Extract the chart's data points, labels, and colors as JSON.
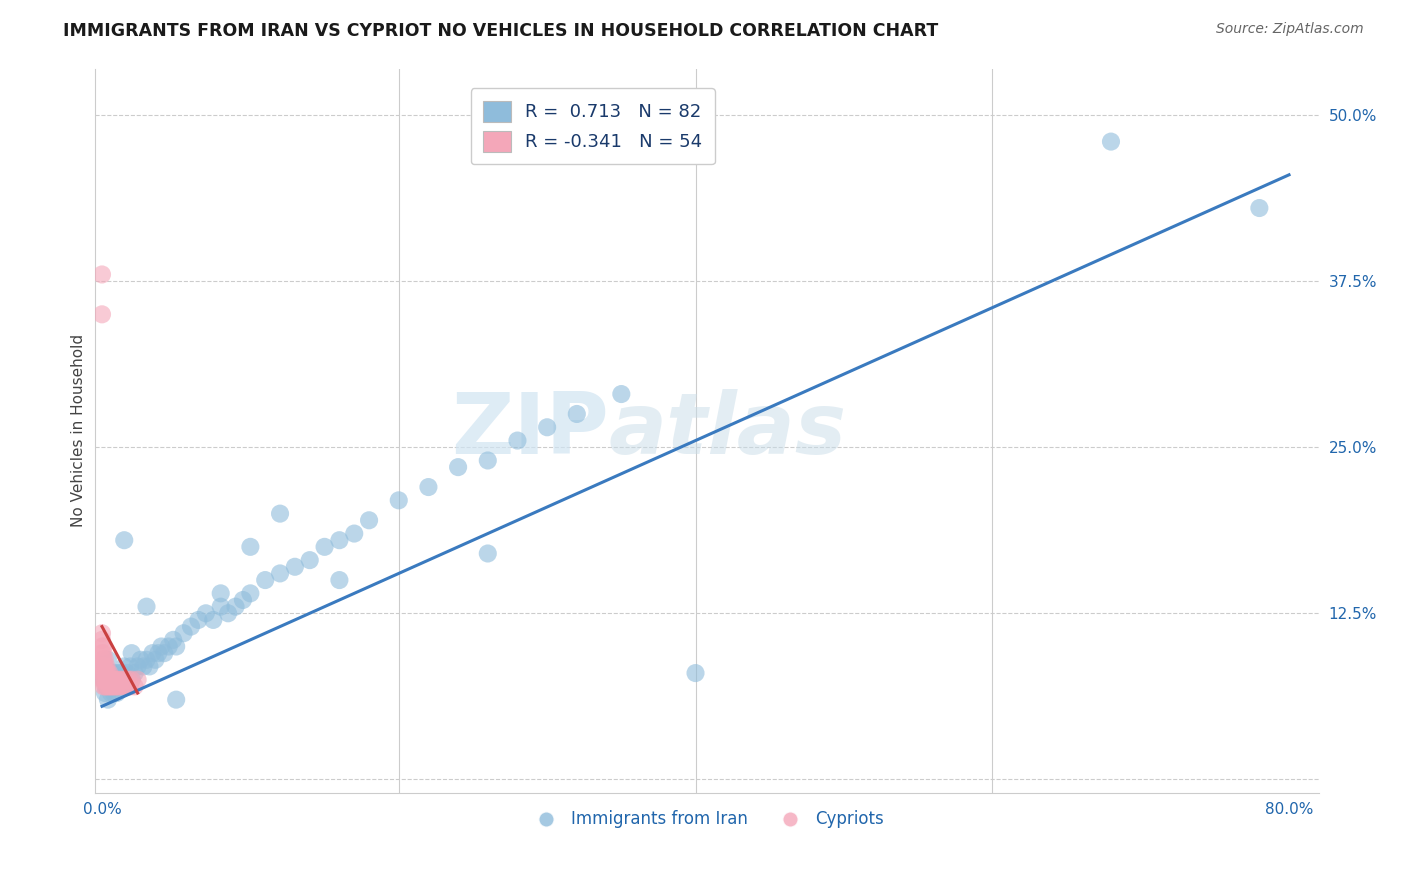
{
  "title": "IMMIGRANTS FROM IRAN VS CYPRIOT NO VEHICLES IN HOUSEHOLD CORRELATION CHART",
  "source": "Source: ZipAtlas.com",
  "ylabel": "No Vehicles in Household",
  "ytick_values": [
    0.0,
    0.125,
    0.25,
    0.375,
    0.5
  ],
  "xtick_values": [
    0.0,
    0.2,
    0.4,
    0.6,
    0.8
  ],
  "xtick_labels": [
    "0.0%",
    "",
    "",
    "",
    "80.0%"
  ],
  "xlim": [
    -0.005,
    0.82
  ],
  "ylim": [
    -0.01,
    0.535
  ],
  "legend_r_blue": "R =  0.713   N = 82",
  "legend_r_pink": "R = -0.341   N = 54",
  "blue_color": "#8fbcdb",
  "pink_color": "#f4a7b9",
  "blue_line_color": "#3a7abf",
  "pink_line_color": "#c94040",
  "watermark_zip": "ZIP",
  "watermark_atlas": "atlas",
  "blue_scatter_x": [
    0.001,
    0.002,
    0.002,
    0.003,
    0.003,
    0.004,
    0.004,
    0.005,
    0.005,
    0.006,
    0.006,
    0.007,
    0.007,
    0.008,
    0.008,
    0.009,
    0.009,
    0.01,
    0.01,
    0.011,
    0.011,
    0.012,
    0.013,
    0.014,
    0.015,
    0.016,
    0.017,
    0.018,
    0.019,
    0.02,
    0.022,
    0.024,
    0.026,
    0.028,
    0.03,
    0.032,
    0.034,
    0.036,
    0.038,
    0.04,
    0.042,
    0.045,
    0.048,
    0.05,
    0.055,
    0.06,
    0.065,
    0.07,
    0.075,
    0.08,
    0.085,
    0.09,
    0.095,
    0.1,
    0.11,
    0.12,
    0.13,
    0.14,
    0.15,
    0.16,
    0.17,
    0.18,
    0.2,
    0.22,
    0.24,
    0.26,
    0.28,
    0.3,
    0.32,
    0.35,
    0.12,
    0.16,
    0.1,
    0.08,
    0.05,
    0.03,
    0.02,
    0.015,
    0.68,
    0.78,
    0.26,
    0.4
  ],
  "blue_scatter_y": [
    0.075,
    0.065,
    0.085,
    0.07,
    0.08,
    0.06,
    0.09,
    0.07,
    0.08,
    0.065,
    0.075,
    0.07,
    0.08,
    0.065,
    0.075,
    0.07,
    0.08,
    0.065,
    0.075,
    0.07,
    0.08,
    0.075,
    0.08,
    0.07,
    0.085,
    0.075,
    0.08,
    0.07,
    0.085,
    0.075,
    0.08,
    0.085,
    0.09,
    0.085,
    0.09,
    0.085,
    0.095,
    0.09,
    0.095,
    0.1,
    0.095,
    0.1,
    0.105,
    0.1,
    0.11,
    0.115,
    0.12,
    0.125,
    0.12,
    0.13,
    0.125,
    0.13,
    0.135,
    0.14,
    0.15,
    0.155,
    0.16,
    0.165,
    0.175,
    0.18,
    0.185,
    0.195,
    0.21,
    0.22,
    0.235,
    0.24,
    0.255,
    0.265,
    0.275,
    0.29,
    0.2,
    0.15,
    0.175,
    0.14,
    0.06,
    0.13,
    0.095,
    0.18,
    0.48,
    0.43,
    0.17,
    0.08
  ],
  "pink_scatter_x": [
    0.0,
    0.0,
    0.0,
    0.0,
    0.0,
    0.0,
    0.0,
    0.0,
    0.0,
    0.0,
    0.001,
    0.001,
    0.001,
    0.001,
    0.001,
    0.001,
    0.001,
    0.002,
    0.002,
    0.002,
    0.002,
    0.002,
    0.003,
    0.003,
    0.003,
    0.003,
    0.004,
    0.004,
    0.004,
    0.005,
    0.005,
    0.005,
    0.006,
    0.006,
    0.007,
    0.007,
    0.008,
    0.008,
    0.009,
    0.009,
    0.01,
    0.01,
    0.011,
    0.012,
    0.013,
    0.014,
    0.015,
    0.016,
    0.017,
    0.018,
    0.019,
    0.02,
    0.022,
    0.024
  ],
  "pink_scatter_y": [
    0.075,
    0.08,
    0.085,
    0.09,
    0.095,
    0.1,
    0.105,
    0.11,
    0.38,
    0.35,
    0.07,
    0.075,
    0.08,
    0.085,
    0.09,
    0.095,
    0.1,
    0.07,
    0.075,
    0.08,
    0.085,
    0.09,
    0.07,
    0.075,
    0.08,
    0.085,
    0.07,
    0.075,
    0.08,
    0.07,
    0.075,
    0.08,
    0.07,
    0.075,
    0.07,
    0.075,
    0.07,
    0.075,
    0.07,
    0.075,
    0.07,
    0.075,
    0.07,
    0.075,
    0.07,
    0.075,
    0.07,
    0.075,
    0.07,
    0.075,
    0.07,
    0.075,
    0.07,
    0.075
  ],
  "blue_line_x": [
    0.0,
    0.8
  ],
  "blue_line_y": [
    0.055,
    0.455
  ],
  "pink_line_x": [
    0.0,
    0.024
  ],
  "pink_line_y": [
    0.115,
    0.065
  ]
}
